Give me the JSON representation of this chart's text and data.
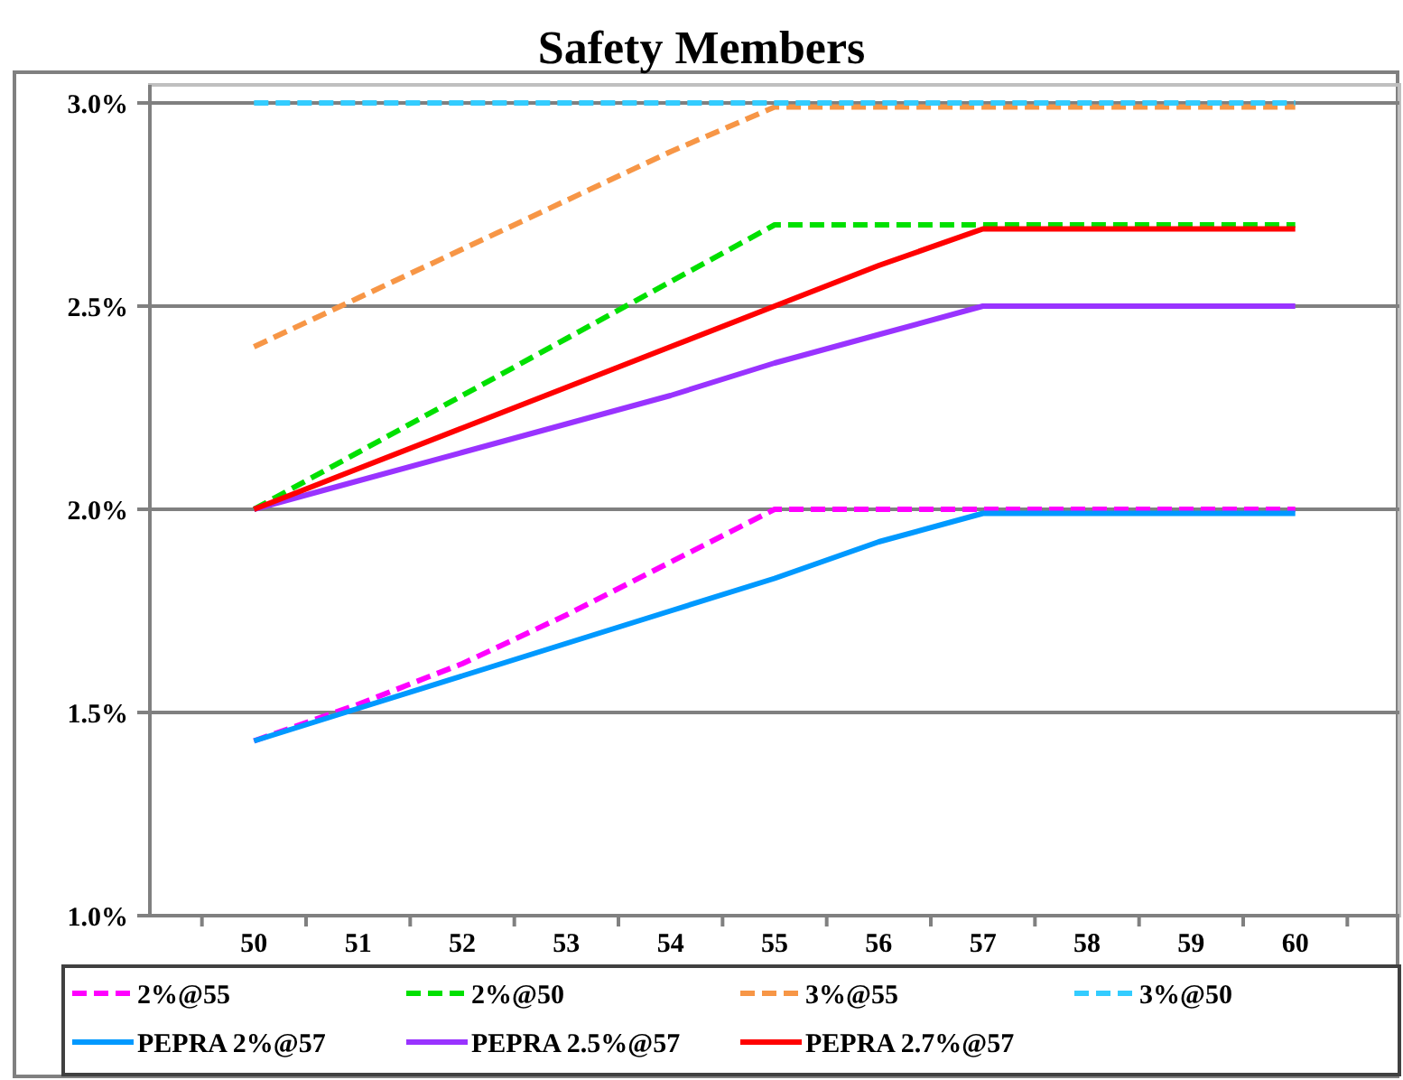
{
  "chart_data": {
    "type": "line",
    "title": "Safety Members",
    "categories": [
      "50",
      "51",
      "52",
      "53",
      "54",
      "55",
      "56",
      "57",
      "58",
      "59",
      "60"
    ],
    "ylim": [
      1.0,
      3.0
    ],
    "yticks": [
      {
        "value": 1.0,
        "label": "1.0%"
      },
      {
        "value": 1.5,
        "label": "1.5%"
      },
      {
        "value": 2.0,
        "label": "2.0%"
      },
      {
        "value": 2.5,
        "label": "2.5%"
      },
      {
        "value": 3.0,
        "label": "3.0%"
      }
    ],
    "grid": "y",
    "legend": "bottom",
    "series": [
      {
        "name": "2%@55",
        "color": "#ff00ff",
        "line_style": "dashed",
        "values": [
          1.43,
          1.52,
          1.62,
          1.74,
          1.87,
          2.0,
          2.0,
          2.0,
          2.0,
          2.0,
          2.0
        ]
      },
      {
        "name": "2%@50",
        "color": "#00e000",
        "line_style": "dashed",
        "values": [
          2.0,
          2.14,
          2.28,
          2.42,
          2.56,
          2.7,
          2.7,
          2.7,
          2.7,
          2.7,
          2.7
        ]
      },
      {
        "name": "3%@55",
        "color": "#f79646",
        "line_style": "dashed",
        "values": [
          2.4,
          2.52,
          2.64,
          2.76,
          2.88,
          2.99,
          2.99,
          2.99,
          2.99,
          2.99,
          2.99
        ]
      },
      {
        "name": "3%@50",
        "color": "#33ccff",
        "line_style": "dashed",
        "values": [
          3.0,
          3.0,
          3.0,
          3.0,
          3.0,
          3.0,
          3.0,
          3.0,
          3.0,
          3.0,
          3.0
        ]
      },
      {
        "name": "PEPRA 2%@57",
        "color": "#0099ff",
        "line_style": "solid",
        "values": [
          1.43,
          1.51,
          1.59,
          1.67,
          1.75,
          1.83,
          1.92,
          1.99,
          1.99,
          1.99,
          1.99
        ]
      },
      {
        "name": "PEPRA 2.5%@57",
        "color": "#9933ff",
        "line_style": "solid",
        "values": [
          2.0,
          2.07,
          2.14,
          2.21,
          2.28,
          2.36,
          2.43,
          2.5,
          2.5,
          2.5,
          2.5
        ]
      },
      {
        "name": "PEPRA 2.7%@57",
        "color": "#ff0000",
        "line_style": "solid",
        "values": [
          2.0,
          2.1,
          2.2,
          2.3,
          2.4,
          2.5,
          2.6,
          2.69,
          2.69,
          2.69,
          2.69
        ]
      }
    ]
  }
}
